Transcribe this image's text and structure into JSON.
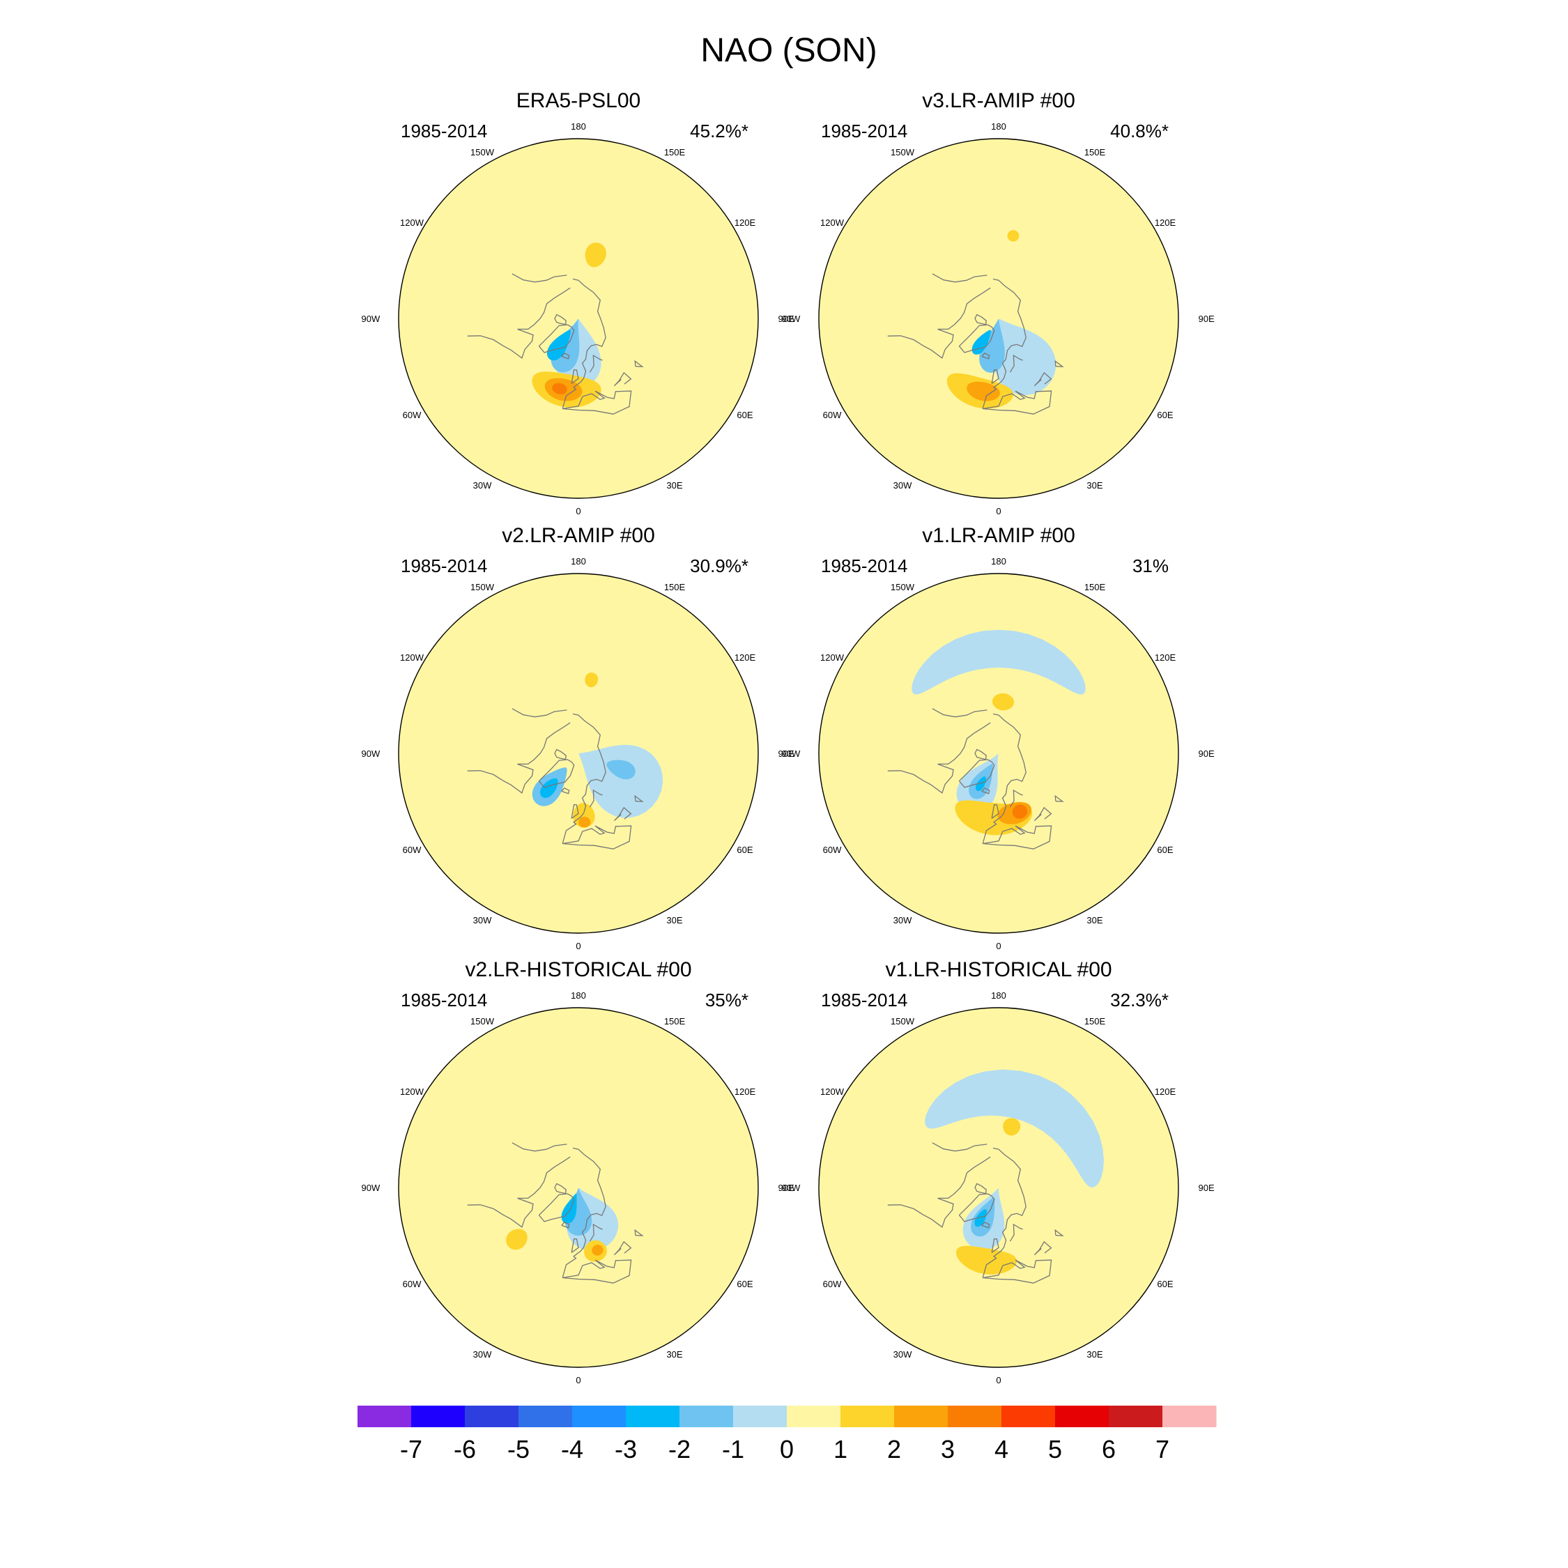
{
  "figure": {
    "title": "NAO (SON)"
  },
  "chart_data": {
    "type": "contour-map",
    "projection": "north polar stereographic",
    "variable": "NAO pattern",
    "season": "SON",
    "longitude_labels": [
      "180",
      "150E",
      "120E",
      "90E",
      "60E",
      "30E",
      "0",
      "30W",
      "60W",
      "90W",
      "120W",
      "150W"
    ],
    "panels": [
      {
        "title": "ERA5-PSL00",
        "period": "1985-2014",
        "variance": "45.2%*",
        "features": [
          {
            "sign": "neg",
            "level": -1,
            "lon": 0,
            "lat": 80,
            "rx": 36,
            "ry": 32
          },
          {
            "sign": "neg",
            "level": -2,
            "lon": -20,
            "lat": 74,
            "rx": 22,
            "ry": 19
          },
          {
            "sign": "neg",
            "level": -3,
            "lon": -35,
            "lat": 70,
            "rx": 13,
            "ry": 11
          },
          {
            "sign": "pos",
            "level": 1,
            "lon": 165,
            "lat": 50,
            "rx": 9,
            "ry": 7
          },
          {
            "sign": "pos",
            "level": 1,
            "lon": -10,
            "lat": 46,
            "rx": 28,
            "ry": 9
          },
          {
            "sign": "pos",
            "level": 2,
            "lon": -12,
            "lat": 46,
            "rx": 15,
            "ry": 6
          },
          {
            "sign": "pos",
            "level": 3,
            "lon": -15,
            "lat": 46,
            "rx": 6,
            "ry": 3
          }
        ]
      },
      {
        "title": "v3.LR-AMIP  #00",
        "period": "1985-2014",
        "variance": "40.8%*",
        "features": [
          {
            "sign": "neg",
            "level": -1,
            "lon": 30,
            "lat": 72,
            "rx": 38,
            "ry": 32
          },
          {
            "sign": "neg",
            "level": -2,
            "lon": -10,
            "lat": 76,
            "rx": 22,
            "ry": 20
          },
          {
            "sign": "neg",
            "level": -3,
            "lon": -35,
            "lat": 72,
            "rx": 11,
            "ry": 9
          },
          {
            "sign": "pos",
            "level": 1,
            "lon": 170,
            "lat": 40,
            "rx": 4,
            "ry": 3
          },
          {
            "sign": "pos",
            "level": 1,
            "lon": -15,
            "lat": 44,
            "rx": 26,
            "ry": 8
          },
          {
            "sign": "pos",
            "level": 2,
            "lon": -12,
            "lat": 45,
            "rx": 13,
            "ry": 5
          }
        ]
      },
      {
        "title": "v2.LR-AMIP  #00",
        "period": "1985-2014",
        "variance": "30.9%*",
        "features": [
          {
            "sign": "neg",
            "level": -1,
            "lon": 60,
            "lat": 70,
            "rx": 42,
            "ry": 34
          },
          {
            "sign": "neg",
            "level": -2,
            "lon": -40,
            "lat": 64,
            "rx": 16,
            "ry": 14
          },
          {
            "sign": "neg",
            "level": -3,
            "lon": -40,
            "lat": 62,
            "rx": 8,
            "ry": 7
          },
          {
            "sign": "neg",
            "level": -2,
            "lon": 70,
            "lat": 62,
            "rx": 11,
            "ry": 9
          },
          {
            "sign": "pos",
            "level": 1,
            "lon": 170,
            "lat": 45,
            "rx": 5,
            "ry": 4
          },
          {
            "sign": "pos",
            "level": 1,
            "lon": 5,
            "lat": 52,
            "rx": 10,
            "ry": 7
          },
          {
            "sign": "pos",
            "level": 2,
            "lon": 5,
            "lat": 48,
            "rx": 5,
            "ry": 3
          }
        ]
      },
      {
        "title": "v1.LR-AMIP  #00",
        "period": "1985-2014",
        "variance": "31%",
        "features": [
          {
            "sign": "neg",
            "level": -1,
            "lon": 180,
            "lat": 30,
            "rx": 55,
            "ry": 9
          },
          {
            "sign": "neg",
            "level": -1,
            "lon": -30,
            "lat": 72,
            "rx": 28,
            "ry": 22
          },
          {
            "sign": "neg",
            "level": -2,
            "lon": -30,
            "lat": 70,
            "rx": 15,
            "ry": 12
          },
          {
            "sign": "neg",
            "level": -3,
            "lon": -30,
            "lat": 68,
            "rx": 6,
            "ry": 5
          },
          {
            "sign": "pos",
            "level": 1,
            "lon": 175,
            "lat": 58,
            "rx": 12,
            "ry": 5
          },
          {
            "sign": "pos",
            "level": 1,
            "lon": -5,
            "lat": 50,
            "rx": 35,
            "ry": 9
          },
          {
            "sign": "pos",
            "level": 2,
            "lon": 15,
            "lat": 52,
            "rx": 16,
            "ry": 6
          },
          {
            "sign": "pos",
            "level": 3,
            "lon": 20,
            "lat": 52,
            "rx": 7,
            "ry": 4
          }
        ]
      },
      {
        "title": "v2.LR-HISTORICAL  #00",
        "period": "1985-2014",
        "variance": "35%*",
        "features": [
          {
            "sign": "neg",
            "level": -1,
            "lon": 20,
            "lat": 74,
            "rx": 40,
            "ry": 24
          },
          {
            "sign": "neg",
            "level": -2,
            "lon": 0,
            "lat": 76,
            "rx": 26,
            "ry": 16
          },
          {
            "sign": "neg",
            "level": -3,
            "lon": -20,
            "lat": 76,
            "rx": 15,
            "ry": 10
          },
          {
            "sign": "pos",
            "level": 1,
            "lon": -50,
            "lat": 42,
            "rx": 7,
            "ry": 6
          },
          {
            "sign": "pos",
            "level": 1,
            "lon": 15,
            "lat": 50,
            "rx": 10,
            "ry": 6
          },
          {
            "sign": "pos",
            "level": 2,
            "lon": 17,
            "lat": 50,
            "rx": 5,
            "ry": 3
          }
        ]
      },
      {
        "title": "v1.LR-HISTORICAL  #00",
        "period": "1985-2014",
        "variance": "32.3%*",
        "features": [
          {
            "sign": "neg",
            "level": -1,
            "lon": 160,
            "lat": 35,
            "rx": 70,
            "ry": 12
          },
          {
            "sign": "neg",
            "level": -1,
            "lon": -20,
            "lat": 72,
            "rx": 30,
            "ry": 22
          },
          {
            "sign": "neg",
            "level": -2,
            "lon": -25,
            "lat": 70,
            "rx": 16,
            "ry": 13
          },
          {
            "sign": "neg",
            "level": -3,
            "lon": -30,
            "lat": 68,
            "rx": 7,
            "ry": 6
          },
          {
            "sign": "pos",
            "level": 1,
            "lon": 168,
            "lat": 52,
            "rx": 8,
            "ry": 5
          },
          {
            "sign": "pos",
            "level": 1,
            "lon": -10,
            "lat": 45,
            "rx": 24,
            "ry": 7
          }
        ]
      }
    ],
    "colorbar": {
      "levels": [
        "-7",
        "-6",
        "-5",
        "-4",
        "-3",
        "-2",
        "-1",
        "0",
        "1",
        "2",
        "3",
        "4",
        "5",
        "6",
        "7"
      ],
      "colors": [
        "#8a2be2",
        "#1e00ff",
        "#2e3fe0",
        "#3070e8",
        "#1e90ff",
        "#00b8f5",
        "#6ec3f0",
        "#b4ddf1",
        "#fef6a3",
        "#fdd42c",
        "#fba30a",
        "#f97d02",
        "#fb3b02",
        "#e50104",
        "#cc1b1d",
        "#fbb5b6"
      ]
    }
  }
}
